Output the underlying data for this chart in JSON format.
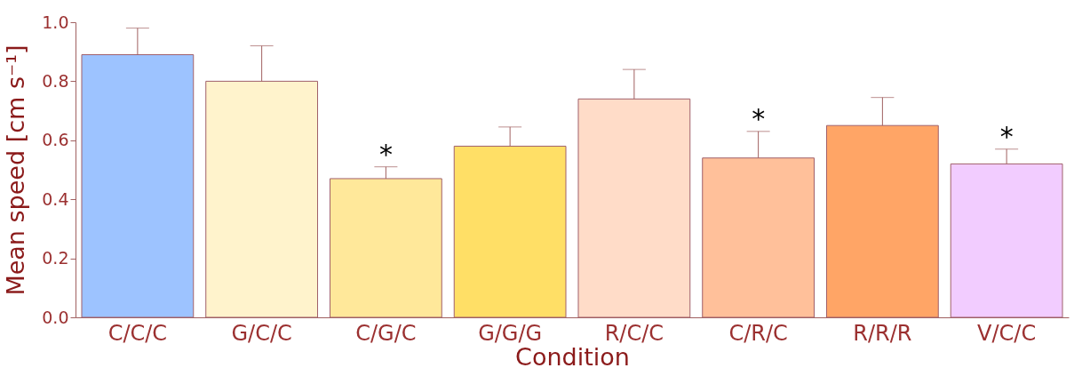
{
  "chart_data": {
    "type": "bar",
    "xlabel": "Condition",
    "ylabel": "Mean speed [cm s⁻¹]",
    "categories": [
      "C/C/C",
      "G/C/C",
      "C/G/C",
      "G/G/G",
      "R/C/C",
      "C/R/C",
      "R/R/R",
      "V/C/C"
    ],
    "values": [
      0.89,
      0.8,
      0.47,
      0.58,
      0.74,
      0.54,
      0.65,
      0.52
    ],
    "errors": [
      [
        0.89,
        0.98
      ],
      [
        0.8,
        0.92
      ],
      [
        0.47,
        0.51
      ],
      [
        0.58,
        0.645
      ],
      [
        0.74,
        0.84
      ],
      [
        0.54,
        0.63
      ],
      [
        0.65,
        0.745
      ],
      [
        0.52,
        0.57
      ]
    ],
    "colors": [
      "#9dc3ff",
      "#fff3cc",
      "#ffe89a",
      "#ffdf66",
      "#ffdcc8",
      "#ffc09a",
      "#ffa566",
      "#f2ccff"
    ],
    "ylim": [
      0,
      1.0
    ],
    "yticks": [
      {
        "value": 0,
        "label": "0.0"
      },
      0.2,
      0.4,
      0.6,
      0.8,
      {
        "value": 1,
        "label": "1.0"
      }
    ],
    "grid": false,
    "annotations": [
      {
        "text": "*",
        "x": "C/G/C",
        "y": 0.51
      },
      {
        "text": "*",
        "x": "C/R/C",
        "y": 0.63
      },
      {
        "text": "*",
        "x": "V/C/C",
        "y": 0.57
      }
    ]
  }
}
